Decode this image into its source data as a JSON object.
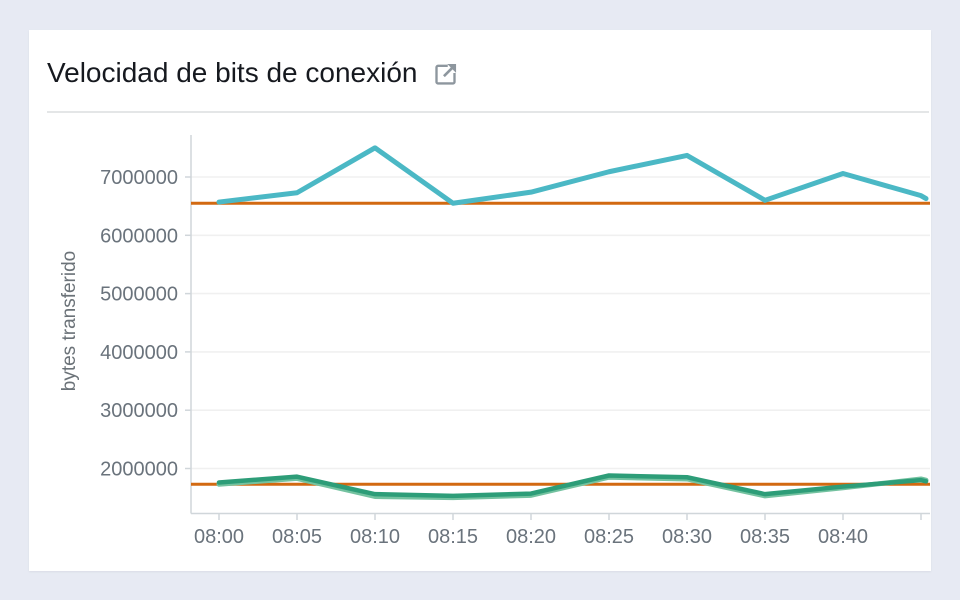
{
  "page": {
    "background_color": "#e7eaf3",
    "card_color": "#ffffff"
  },
  "widget": {
    "header_icon": "external-link-icon",
    "icon_color": "#8d969e"
  },
  "chart_data": {
    "type": "line",
    "title": "Velocidad de bits de conexión",
    "xlabel": "",
    "ylabel": "bytes transferido",
    "x_ticks": [
      {
        "time": "08:00",
        "labeled": true
      },
      {
        "time": "08:05",
        "labeled": true
      },
      {
        "time": "08:10",
        "labeled": true
      },
      {
        "time": "08:15",
        "labeled": true
      },
      {
        "time": "08:20",
        "labeled": true
      },
      {
        "time": "08:25",
        "labeled": true
      },
      {
        "time": "08:30",
        "labeled": true
      },
      {
        "time": "08:35",
        "labeled": true
      },
      {
        "time": "08:40",
        "labeled": true
      },
      {
        "time": "08:45",
        "labeled": false
      }
    ],
    "y_ticks": [
      7000000,
      6000000,
      5000000,
      4000000,
      3000000,
      2000000
    ],
    "ylim": [
      1240000,
      7720000
    ],
    "grid": "horizontal-only",
    "legend": "none",
    "series": [
      {
        "name": "cyan",
        "color": "#4bb8c5",
        "values": [
          6570000,
          6730000,
          7500000,
          6550000,
          6740000,
          7090000,
          7370000,
          6600000,
          7060000,
          6680000
        ],
        "tail": 6630000
      },
      {
        "name": "green-light",
        "color": "#74c2a0",
        "values": [
          1730000,
          1830000,
          1520000,
          1500000,
          1540000,
          1850000,
          1820000,
          1530000,
          1670000,
          1820000
        ],
        "tail": 1800000
      },
      {
        "name": "green-dark",
        "color": "#2d9d78",
        "values": [
          1760000,
          1860000,
          1560000,
          1530000,
          1570000,
          1880000,
          1850000,
          1560000,
          1690000,
          1800000
        ],
        "tail": 1780000
      }
    ],
    "annotations": [
      {
        "value": 6550000,
        "color": "#d26911"
      },
      {
        "value": 1730000,
        "color": "#d26911"
      }
    ],
    "style": {
      "grid_color": "#f0f0f0",
      "axis_color": "#d0d6da",
      "tick_label_color": "#6a737c",
      "ylabel_color": "#6b7278"
    }
  }
}
